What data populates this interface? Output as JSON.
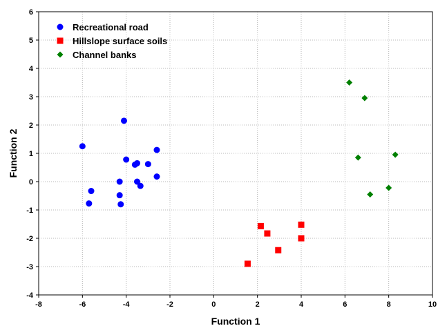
{
  "chart_data": {
    "type": "scatter",
    "title": "",
    "xlabel": "Function 1",
    "ylabel": "Function 2",
    "xlim": [
      -8,
      10
    ],
    "ylim": [
      -4,
      6
    ],
    "x_ticks": [
      -8,
      -6,
      -4,
      -2,
      0,
      2,
      4,
      6,
      8,
      10
    ],
    "y_ticks": [
      -4,
      -3,
      -2,
      -1,
      0,
      1,
      2,
      3,
      4,
      5,
      6
    ],
    "grid": true,
    "legend_position": "top-left",
    "series": [
      {
        "name": "Recreational road",
        "marker": "circle",
        "color": "#0000ff",
        "points": [
          [
            -4.1,
            2.15
          ],
          [
            -6.0,
            1.25
          ],
          [
            -2.6,
            1.12
          ],
          [
            -4.0,
            0.78
          ],
          [
            -3.5,
            0.65
          ],
          [
            -3.6,
            0.6
          ],
          [
            -3.0,
            0.62
          ],
          [
            -2.6,
            0.18
          ],
          [
            -4.3,
            0.0
          ],
          [
            -3.5,
            0.0
          ],
          [
            -3.35,
            -0.15
          ],
          [
            -5.6,
            -0.33
          ],
          [
            -4.3,
            -0.48
          ],
          [
            -5.7,
            -0.77
          ],
          [
            -4.25,
            -0.8
          ]
        ]
      },
      {
        "name": "Hillslope surface soils",
        "marker": "square",
        "color": "#ff0000",
        "points": [
          [
            2.15,
            -1.57
          ],
          [
            2.45,
            -1.83
          ],
          [
            4.0,
            -1.52
          ],
          [
            4.0,
            -2.0
          ],
          [
            2.95,
            -2.42
          ],
          [
            1.55,
            -2.9
          ]
        ]
      },
      {
        "name": "Channel banks",
        "marker": "diamond",
        "color": "#008000",
        "points": [
          [
            6.2,
            3.5
          ],
          [
            6.9,
            2.95
          ],
          [
            8.3,
            0.95
          ],
          [
            6.6,
            0.85
          ],
          [
            8.0,
            -0.22
          ],
          [
            7.15,
            -0.45
          ]
        ]
      }
    ]
  }
}
